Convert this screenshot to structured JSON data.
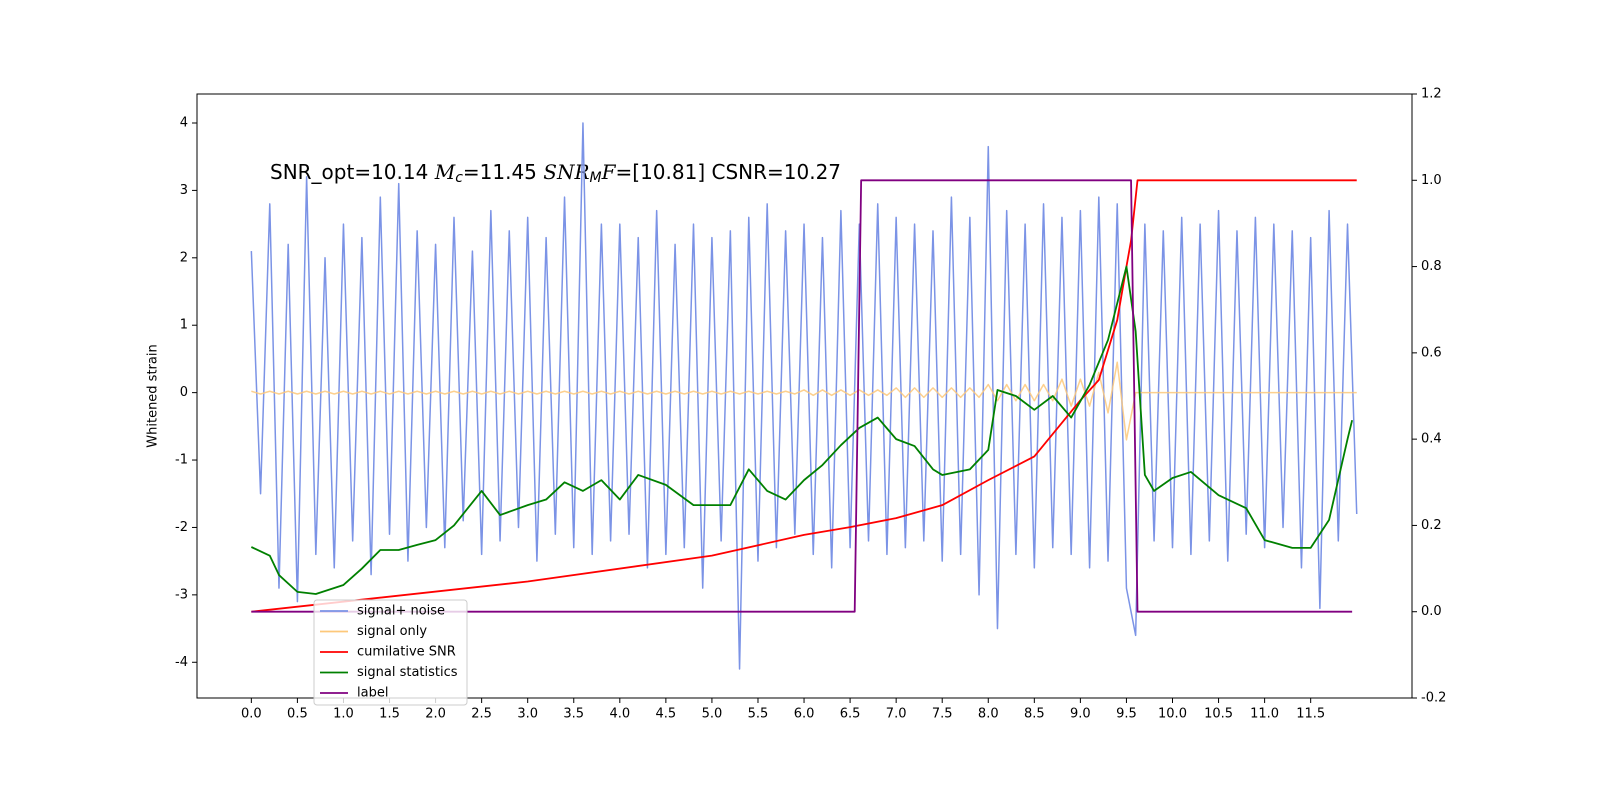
{
  "chart_data": {
    "type": "line",
    "annotation": [
      "SNR_opt=10.14 ",
      "M",
      "c",
      "=11.45 ",
      "SNR",
      "M",
      "F",
      "=[10.81] CSNR=10.27"
    ],
    "ylabel": "Whitened strain",
    "xlim": [
      -0.59,
      12.6
    ],
    "ylim": [
      -4.53,
      4.43
    ],
    "y2lim": [
      -0.2,
      1.2
    ],
    "xticks": [
      {
        "value": 0,
        "label": "0.0"
      },
      0.5,
      {
        "value": 1,
        "label": "1.0"
      },
      1.5,
      {
        "value": 2,
        "label": "2.0"
      },
      2.5,
      {
        "value": 3,
        "label": "3.0"
      },
      3.5,
      {
        "value": 4,
        "label": "4.0"
      },
      4.5,
      {
        "value": 5,
        "label": "5.0"
      },
      5.5,
      {
        "value": 6,
        "label": "6.0"
      },
      6.5,
      {
        "value": 7,
        "label": "7.0"
      },
      7.5,
      {
        "value": 8,
        "label": "8.0"
      },
      8.5,
      {
        "value": 9,
        "label": "9.0"
      },
      9.5,
      {
        "value": 10,
        "label": "10.0"
      },
      10.5,
      {
        "value": 11,
        "label": "11.0"
      },
      11.5
    ],
    "yticks": [
      -4,
      -3,
      -2,
      -1,
      0,
      1,
      2,
      3,
      4
    ],
    "y2ticks": [
      -0.2,
      {
        "value": 0,
        "label": "0.0"
      },
      0.2,
      0.4,
      0.6,
      0.8,
      {
        "value": 1,
        "label": "1.0"
      },
      1.2
    ],
    "series": [
      {
        "name": "signal+ noise",
        "color": "#7b93e6",
        "x": [
          0,
          0.1,
          0.2,
          0.3,
          0.4,
          0.5,
          0.6,
          0.7,
          0.8,
          0.9,
          1,
          1.1,
          1.2,
          1.3,
          1.4,
          1.5,
          1.6,
          1.7,
          1.8,
          1.9,
          2,
          2.1,
          2.2,
          2.3,
          2.4,
          2.5,
          2.6,
          2.7,
          2.8,
          2.9,
          3,
          3.1,
          3.2,
          3.3,
          3.4,
          3.5,
          3.6,
          3.7,
          3.8,
          3.9,
          4,
          4.1,
          4.2,
          4.3,
          4.4,
          4.5,
          4.6,
          4.7,
          4.8,
          4.9,
          5,
          5.1,
          5.2,
          5.3,
          5.4,
          5.5,
          5.6,
          5.7,
          5.8,
          5.9,
          6,
          6.1,
          6.2,
          6.3,
          6.4,
          6.5,
          6.6,
          6.7,
          6.8,
          6.9,
          7,
          7.1,
          7.2,
          7.3,
          7.4,
          7.5,
          7.6,
          7.7,
          7.8,
          7.9,
          8,
          8.1,
          8.2,
          8.3,
          8.4,
          8.5,
          8.6,
          8.7,
          8.8,
          8.9,
          9,
          9.1,
          9.2,
          9.3,
          9.4,
          9.5,
          9.6,
          9.7,
          9.8,
          9.9,
          10,
          10.1,
          10.2,
          10.3,
          10.4,
          10.5,
          10.6,
          10.7,
          10.8,
          10.9,
          11,
          11.1,
          11.2,
          11.3,
          11.4,
          11.5,
          11.6,
          11.7,
          11.8,
          11.9,
          12
        ],
        "values": [
          2.1,
          -1.5,
          2.8,
          -2.9,
          2.2,
          -3.1,
          3.2,
          -2.4,
          2.0,
          -2.6,
          2.5,
          -2.2,
          2.3,
          -2.7,
          2.9,
          -2.1,
          3.1,
          -2.5,
          2.4,
          -2.0,
          2.2,
          -2.3,
          2.6,
          -1.9,
          2.1,
          -2.4,
          2.7,
          -2.2,
          2.4,
          -2.0,
          2.6,
          -2.5,
          2.3,
          -2.1,
          2.9,
          -2.3,
          4.0,
          -2.4,
          2.5,
          -2.2,
          2.5,
          -2.1,
          2.3,
          -2.6,
          2.7,
          -2.4,
          2.2,
          -2.3,
          2.5,
          -2.9,
          2.3,
          -2.2,
          2.4,
          -4.1,
          2.6,
          -2.5,
          2.8,
          -2.3,
          2.4,
          -2.1,
          2.5,
          -2.4,
          2.3,
          -2.6,
          2.7,
          -2.3,
          2.5,
          -2.2,
          2.8,
          -2.4,
          2.6,
          -2.3,
          2.5,
          -2.2,
          2.4,
          -2.5,
          2.9,
          -2.4,
          2.6,
          -3.0,
          3.65,
          -3.5,
          2.7,
          -2.4,
          2.5,
          -2.6,
          2.8,
          -2.3,
          2.6,
          -2.4,
          2.7,
          -2.6,
          2.9,
          -2.5,
          2.8,
          -2.9,
          -3.6,
          2.5,
          -2.2,
          2.4,
          -2.3,
          2.6,
          -2.4,
          2.5,
          -2.2,
          2.7,
          -2.5,
          2.4,
          -2.1,
          2.6,
          -2.3,
          2.5,
          -2.0,
          2.4,
          -2.6,
          2.3,
          -3.2,
          2.7,
          -2.2,
          2.5,
          -1.8
        ]
      },
      {
        "name": "signal only",
        "color": "#fdc87a",
        "x": [
          0,
          0.1,
          0.2,
          0.3,
          0.4,
          0.5,
          0.6,
          0.7,
          0.8,
          0.9,
          1,
          1.1,
          1.2,
          1.3,
          1.4,
          1.5,
          1.6,
          1.7,
          1.8,
          1.9,
          2,
          2.1,
          2.2,
          2.3,
          2.4,
          2.5,
          2.6,
          2.7,
          2.8,
          2.9,
          3,
          3.1,
          3.2,
          3.3,
          3.4,
          3.5,
          3.6,
          3.7,
          3.8,
          3.9,
          4,
          4.1,
          4.2,
          4.3,
          4.4,
          4.5,
          4.6,
          4.7,
          4.8,
          4.9,
          5,
          5.1,
          5.2,
          5.3,
          5.4,
          5.5,
          5.6,
          5.7,
          5.8,
          5.9,
          6,
          6.1,
          6.2,
          6.3,
          6.4,
          6.5,
          6.6,
          6.7,
          6.8,
          6.9,
          7,
          7.1,
          7.2,
          7.3,
          7.4,
          7.5,
          7.6,
          7.7,
          7.8,
          7.9,
          8,
          8.1,
          8.2,
          8.3,
          8.4,
          8.5,
          8.6,
          8.7,
          8.8,
          8.9,
          9,
          9.1,
          9.2,
          9.3,
          9.4,
          9.5,
          9.6,
          9.7,
          9.8,
          9.9,
          10,
          10.1,
          10.2,
          10.3,
          10.4,
          10.5,
          10.6,
          10.7,
          10.8,
          10.9,
          11,
          11.1,
          11.2,
          11.3,
          11.4,
          11.5,
          11.6,
          11.7,
          11.8,
          11.9,
          12
        ],
        "values": [
          0.02,
          -0.02,
          0.02,
          -0.02,
          0.02,
          -0.02,
          0.02,
          -0.02,
          0.02,
          -0.02,
          0.02,
          -0.02,
          0.02,
          -0.02,
          0.02,
          -0.02,
          0.02,
          -0.02,
          0.02,
          -0.02,
          0.02,
          -0.02,
          0.02,
          -0.02,
          0.02,
          -0.02,
          0.02,
          -0.02,
          0.02,
          -0.02,
          0.02,
          -0.02,
          0.02,
          -0.02,
          0.02,
          -0.02,
          0.02,
          -0.02,
          0.02,
          -0.02,
          0.02,
          -0.02,
          0.02,
          -0.02,
          0.02,
          -0.02,
          0.02,
          -0.02,
          0.02,
          -0.02,
          0.02,
          -0.02,
          0.02,
          -0.02,
          0.02,
          -0.02,
          0.02,
          -0.02,
          0.02,
          -0.02,
          0.04,
          -0.04,
          0.04,
          -0.04,
          0.04,
          -0.04,
          0.04,
          -0.04,
          0.04,
          -0.04,
          0.07,
          -0.07,
          0.07,
          -0.07,
          0.07,
          -0.07,
          0.07,
          -0.07,
          0.07,
          -0.07,
          0.12,
          -0.12,
          0.12,
          -0.12,
          0.12,
          -0.12,
          0.12,
          -0.12,
          0.2,
          -0.2,
          0.2,
          -0.2,
          0.3,
          -0.3,
          0.45,
          -0.7,
          0,
          0,
          0,
          0,
          0,
          0,
          0,
          0,
          0,
          0,
          0,
          0,
          0,
          0,
          0,
          0,
          0,
          0,
          0,
          0,
          0,
          0,
          0,
          0,
          0
        ]
      },
      {
        "name": "cumilative SNR",
        "color": "#ff0000",
        "axis": "y2",
        "x": [
          0,
          3,
          5,
          6,
          6.5,
          7,
          7.5,
          8,
          8.5,
          9,
          9.2,
          9.4,
          9.5,
          9.55,
          9.62,
          12
        ],
        "values": [
          0,
          0.07,
          0.13,
          0.178,
          0.196,
          0.217,
          0.247,
          0.305,
          0.36,
          0.49,
          0.537,
          0.676,
          0.8,
          0.86,
          1,
          1
        ]
      },
      {
        "name": "signal statistics",
        "color": "#008000",
        "axis": "y2",
        "x": [
          0,
          0.2,
          0.3,
          0.5,
          0.7,
          1,
          1.2,
          1.4,
          1.6,
          1.8,
          2,
          2.2,
          2.5,
          2.7,
          3,
          3.2,
          3.4,
          3.6,
          3.8,
          4,
          4.2,
          4.5,
          4.8,
          5,
          5.2,
          5.4,
          5.6,
          5.8,
          6,
          6.2,
          6.4,
          6.6,
          6.8,
          7,
          7.2,
          7.4,
          7.5,
          7.8,
          8,
          8.1,
          8.3,
          8.5,
          8.7,
          8.9,
          9.1,
          9.3,
          9.5,
          9.6,
          9.7,
          9.8,
          10,
          10.2,
          10.5,
          10.8,
          11,
          11.3,
          11.5,
          11.7,
          11.9,
          11.95
        ],
        "values": [
          0.15,
          0.13,
          0.085,
          0.046,
          0.041,
          0.062,
          0.1,
          0.143,
          0.143,
          0.155,
          0.166,
          0.2,
          0.28,
          0.224,
          0.247,
          0.26,
          0.3,
          0.28,
          0.305,
          0.26,
          0.317,
          0.294,
          0.247,
          0.247,
          0.247,
          0.33,
          0.28,
          0.26,
          0.305,
          0.34,
          0.386,
          0.426,
          0.45,
          0.4,
          0.384,
          0.33,
          0.317,
          0.33,
          0.375,
          0.514,
          0.5,
          0.468,
          0.5,
          0.45,
          0.526,
          0.63,
          0.8,
          0.65,
          0.317,
          0.28,
          0.31,
          0.324,
          0.27,
          0.24,
          0.166,
          0.148,
          0.148,
          0.213,
          0.4,
          0.444
        ]
      },
      {
        "name": "label",
        "color": "#800080",
        "axis": "y2",
        "x": [
          0,
          6.55,
          6.62,
          9.55,
          9.62,
          11.95
        ],
        "values": [
          0,
          0,
          1,
          1,
          0,
          0
        ]
      }
    ]
  }
}
